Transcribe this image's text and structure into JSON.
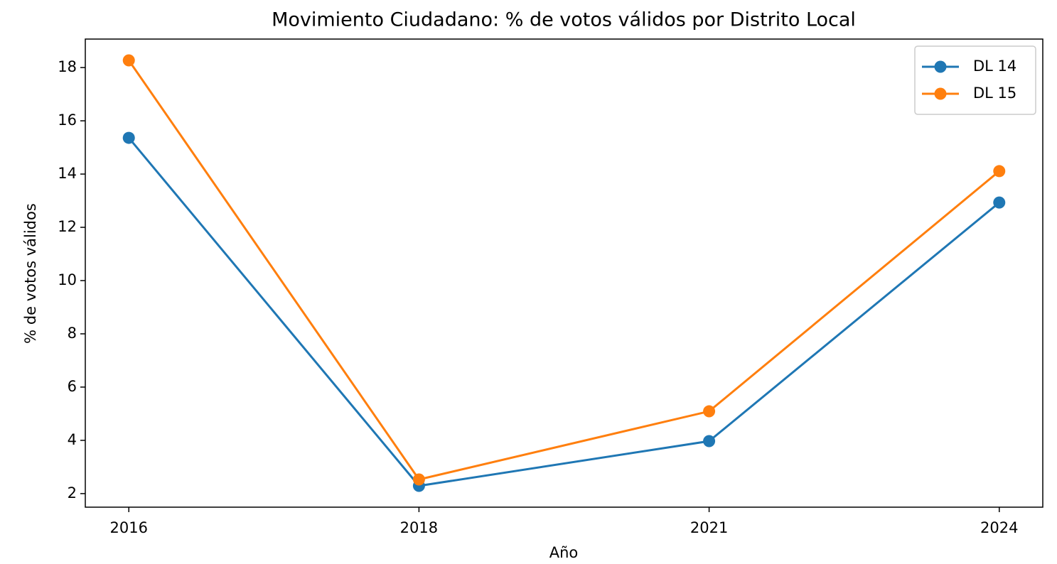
{
  "chart_data": {
    "type": "line",
    "title": "Movimiento Ciudadano: % de votos válidos por Distrito Local",
    "x_label": "Año",
    "y_label": "% de votos válidos",
    "categories": [
      "2016",
      "2018",
      "2021",
      "2024"
    ],
    "series": [
      {
        "name": "DL 14",
        "color": "#1f77b4",
        "values": [
          15.36,
          2.29,
          3.97,
          12.93
        ]
      },
      {
        "name": "DL 15",
        "color": "#ff7f0e",
        "values": [
          18.27,
          2.53,
          5.09,
          14.11
        ]
      }
    ],
    "ylim": [
      1.49,
      19.07
    ],
    "yticks": [
      2,
      4,
      6,
      8,
      10,
      12,
      14,
      16,
      18
    ],
    "grid": false,
    "legend": "upper right"
  }
}
